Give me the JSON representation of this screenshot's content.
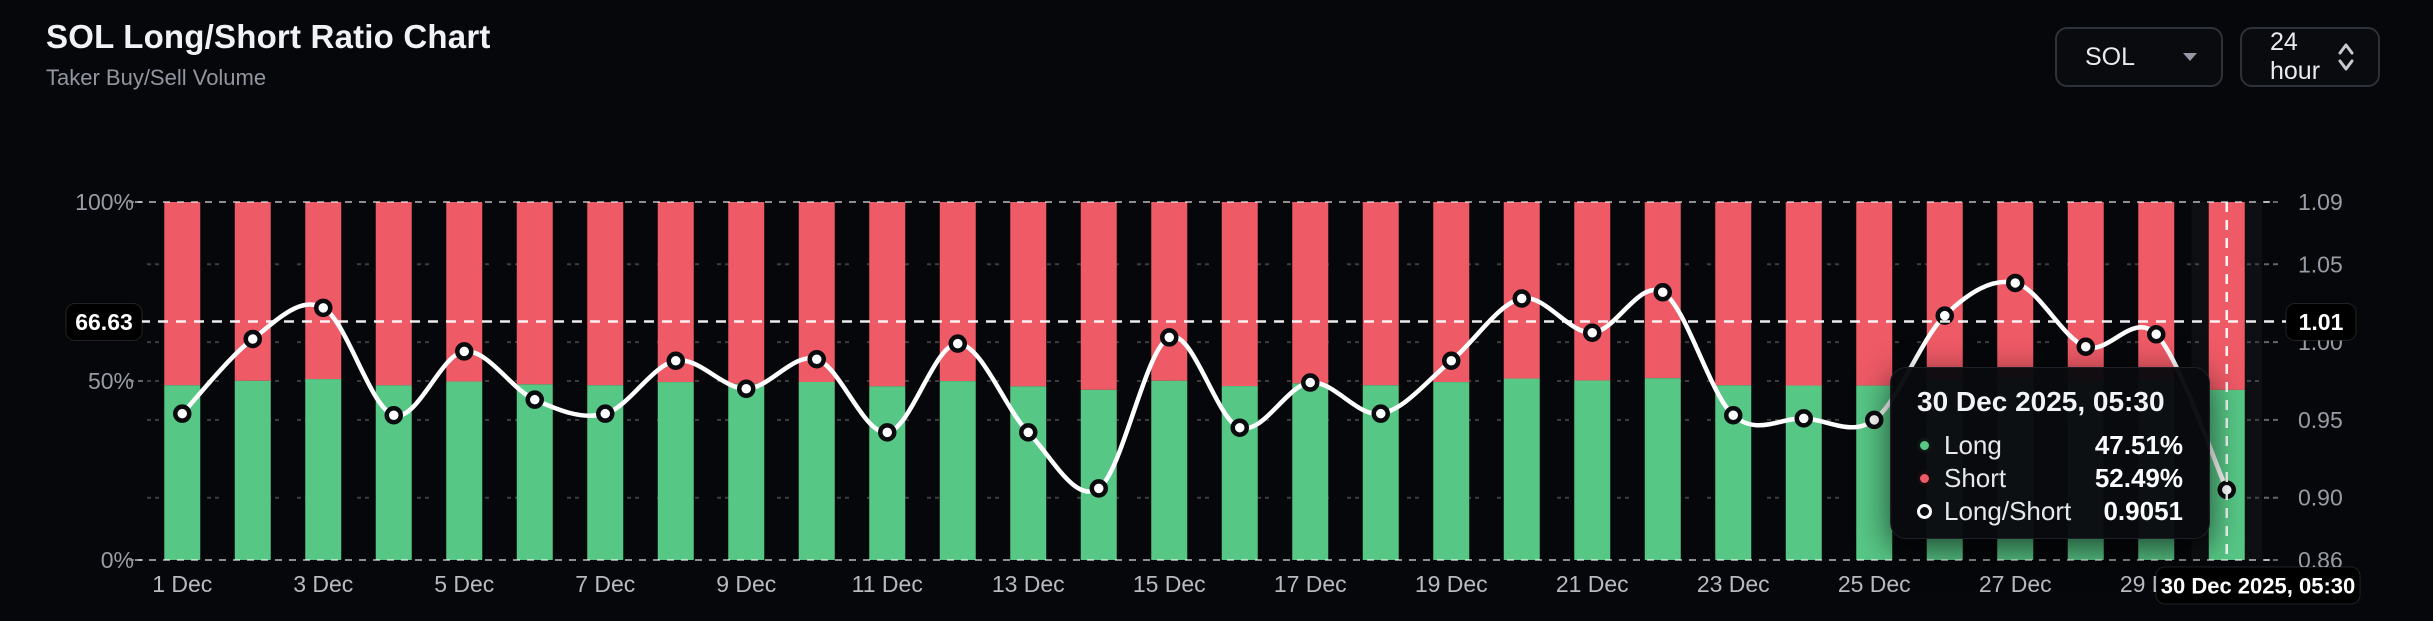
{
  "header": {
    "title": "SOL Long/Short Ratio Chart",
    "subtitle": "Taker Buy/Sell Volume"
  },
  "controls": {
    "symbol": {
      "value": "SOL"
    },
    "interval": {
      "value": "24 hour"
    }
  },
  "colors": {
    "background": "#06070a",
    "long": "#57c786",
    "short": "#ee5a66",
    "line": "#ffffff",
    "axis_text": "#989ca5",
    "x_axis_text": "#b7bac1",
    "crosshair_label_bg": "#000000",
    "crosshair_label_text": "#ffffff"
  },
  "chart_data": {
    "type": "bar",
    "subtype": "stacked-percent-with-line",
    "title": "SOL Long/Short Ratio Chart",
    "categories": [
      "1 Dec",
      "2 Dec",
      "3 Dec",
      "4 Dec",
      "5 Dec",
      "6 Dec",
      "7 Dec",
      "8 Dec",
      "9 Dec",
      "10 Dec",
      "11 Dec",
      "12 Dec",
      "13 Dec",
      "14 Dec",
      "15 Dec",
      "16 Dec",
      "17 Dec",
      "18 Dec",
      "19 Dec",
      "20 Dec",
      "21 Dec",
      "22 Dec",
      "23 Dec",
      "24 Dec",
      "25 Dec",
      "26 Dec",
      "27 Dec",
      "28 Dec",
      "29 Dec",
      "30 Dec"
    ],
    "series": [
      {
        "name": "Long",
        "unit": "%",
        "axis": "left",
        "values": [
          48.82,
          50.05,
          50.54,
          48.8,
          49.85,
          49.06,
          48.82,
          49.7,
          49.24,
          49.72,
          48.51,
          49.97,
          48.51,
          47.53,
          50.07,
          48.59,
          49.34,
          48.82,
          49.7,
          50.69,
          50.15,
          50.79,
          48.8,
          48.74,
          48.72,
          50.42,
          50.93,
          49.92,
          50.12,
          47.51
        ]
      },
      {
        "name": "Short",
        "unit": "%",
        "axis": "left",
        "values": [
          51.18,
          49.95,
          49.46,
          51.2,
          50.15,
          50.94,
          51.18,
          50.3,
          50.76,
          50.28,
          51.49,
          50.03,
          51.49,
          52.47,
          49.93,
          51.41,
          50.66,
          51.18,
          50.3,
          49.31,
          49.85,
          49.21,
          51.2,
          51.26,
          51.28,
          49.58,
          49.07,
          50.08,
          49.88,
          52.49
        ]
      },
      {
        "name": "Long/Short",
        "unit": "ratio",
        "axis": "right",
        "values": [
          0.954,
          1.002,
          1.022,
          0.953,
          0.994,
          0.963,
          0.954,
          0.988,
          0.97,
          0.989,
          0.942,
          0.999,
          0.942,
          0.906,
          1.003,
          0.945,
          0.974,
          0.954,
          0.988,
          1.028,
          1.006,
          1.032,
          0.953,
          0.951,
          0.95,
          1.017,
          1.038,
          0.997,
          1.005,
          0.9051
        ]
      }
    ],
    "left_axis": {
      "tick_labels": [
        "100%",
        "50%",
        "0%"
      ],
      "tick_values": [
        100,
        50,
        0
      ],
      "range": [
        0,
        100
      ]
    },
    "right_axis": {
      "tick_labels": [
        "1.09",
        "1.05",
        "1.00",
        "0.95",
        "0.90",
        "0.86"
      ],
      "tick_values": [
        1.09,
        1.05,
        1.0,
        0.95,
        0.9,
        0.86
      ],
      "range": [
        0.86,
        1.09
      ]
    },
    "x_tick_every": 2,
    "gridlines_right_values": [
      1.05,
      1.0,
      0.95,
      0.9
    ],
    "gridlines_left_values": [
      50
    ],
    "grid": "dotted",
    "legend_position": "tooltip"
  },
  "crosshair": {
    "h_left_label": "66.63",
    "h_right_label": "1.01",
    "h_value_left_percent": 66.63,
    "v_category_index": 29,
    "x_label": "30 Dec 2025, 05:30"
  },
  "tooltip": {
    "title": "30 Dec 2025, 05:30",
    "rows": [
      {
        "label": "Long",
        "value": "47.51%",
        "marker": "long-dot-icon"
      },
      {
        "label": "Short",
        "value": "52.49%",
        "marker": "short-dot-icon"
      },
      {
        "label": "Long/Short",
        "value": "0.9051",
        "marker": "ratio-ring-icon"
      }
    ]
  }
}
